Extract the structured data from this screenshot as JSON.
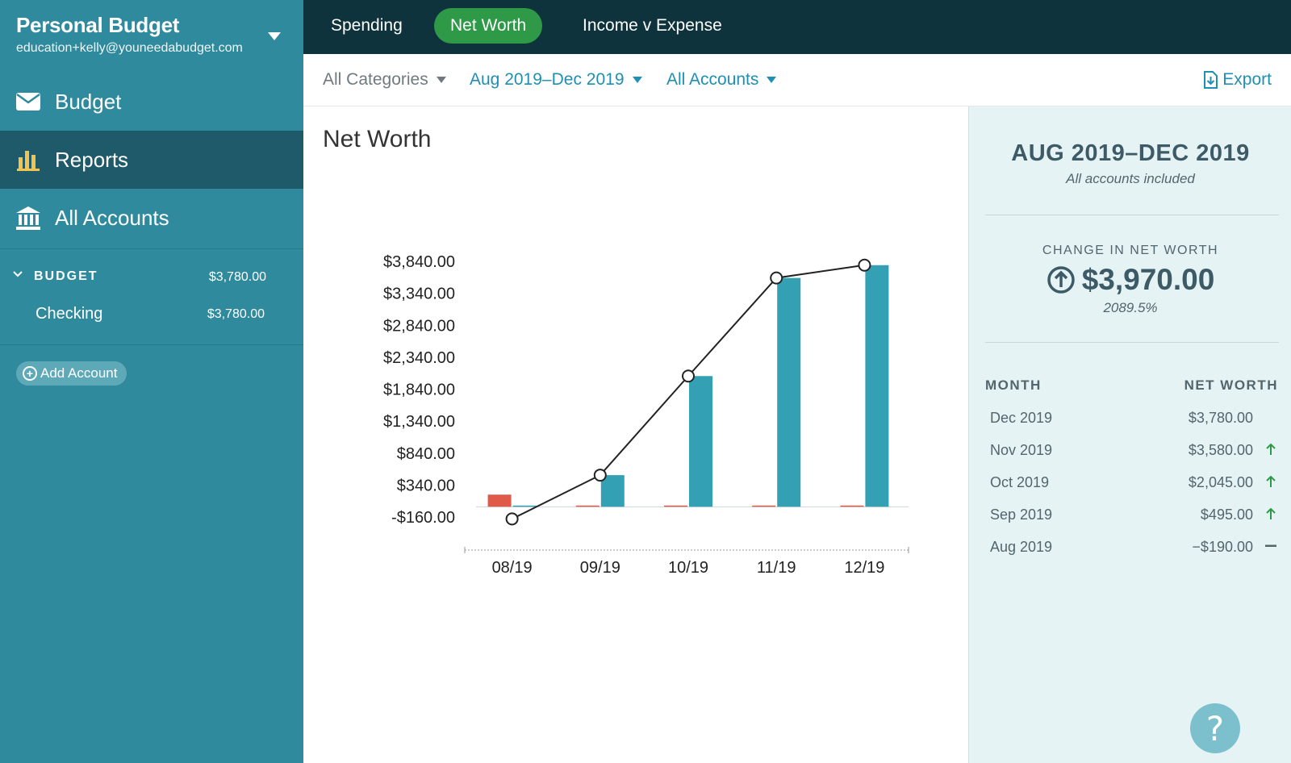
{
  "sidebar": {
    "budget_name": "Personal Budget",
    "email": "education+kelly@youneedabudget.com",
    "nav": [
      {
        "label": "Budget",
        "icon": "envelope-icon"
      },
      {
        "label": "Reports",
        "icon": "bar-chart-icon"
      },
      {
        "label": "All Accounts",
        "icon": "bank-icon"
      }
    ],
    "group": {
      "label": "BUDGET",
      "amount": "$3,780.00"
    },
    "accounts": [
      {
        "name": "Checking",
        "amount": "$3,780.00"
      }
    ],
    "add_account": "Add Account"
  },
  "tabs": [
    "Spending",
    "Net Worth",
    "Income v Expense"
  ],
  "filters": {
    "categories": "All Categories",
    "date_range": "Aug 2019–Dec 2019",
    "accounts": "All Accounts",
    "export": "Export"
  },
  "chart": {
    "title": "Net Worth"
  },
  "chart_data": {
    "type": "bar",
    "categories": [
      "08/19",
      "09/19",
      "10/19",
      "11/19",
      "12/19"
    ],
    "y_ticks": [
      "$3,840.00",
      "$3,340.00",
      "$2,840.00",
      "$2,340.00",
      "$1,840.00",
      "$1,340.00",
      "$840.00",
      "$340.00",
      "-$160.00"
    ],
    "ylim": [
      -160,
      3840
    ],
    "series": [
      {
        "type": "bar",
        "values": [
          0,
          495,
          2045,
          3580,
          3780
        ],
        "color": "#33a1b3"
      },
      {
        "type": "bar",
        "values": [
          190,
          0,
          0,
          0,
          0
        ],
        "color": "#e05a4a"
      },
      {
        "type": "line",
        "values": [
          -190,
          495,
          2045,
          3580,
          3780
        ],
        "color": "#222222"
      }
    ]
  },
  "summary": {
    "range": "AUG 2019–DEC 2019",
    "sub": "All accounts included",
    "change_label": "CHANGE IN NET WORTH",
    "change": "$3,970.00",
    "percent": "2089.5%",
    "col_month": "MONTH",
    "col_net": "NET WORTH",
    "rows": [
      {
        "month": "Dec 2019",
        "value": "$3,780.00",
        "trend": "none"
      },
      {
        "month": "Nov 2019",
        "value": "$3,580.00",
        "trend": "up"
      },
      {
        "month": "Oct 2019",
        "value": "$2,045.00",
        "trend": "up"
      },
      {
        "month": "Sep 2019",
        "value": "$495.00",
        "trend": "up"
      },
      {
        "month": "Aug 2019",
        "value": "−$190.00",
        "trend": "flat"
      }
    ]
  },
  "help": "?",
  "colors": {
    "sidebar": "#2f8a9e",
    "active_nav": "#1f5a6b",
    "topbar": "#0e333d",
    "tab_active": "#2e9a48",
    "link": "#1f8fb3",
    "up_arrow": "#2e9a48"
  }
}
